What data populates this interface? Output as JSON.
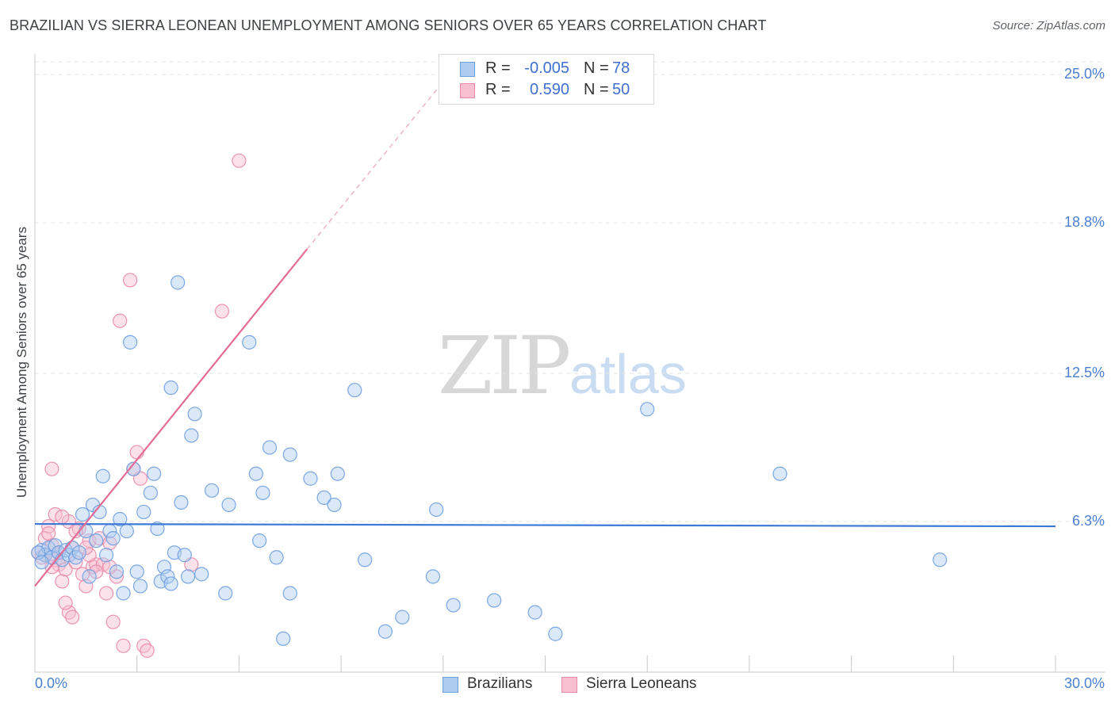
{
  "header": {
    "title": "BRAZILIAN VS SIERRA LEONEAN UNEMPLOYMENT AMONG SENIORS OVER 65 YEARS CORRELATION CHART",
    "source": "Source: ZipAtlas.com"
  },
  "watermark": {
    "zip": "ZIP",
    "atlas": "atlas"
  },
  "legend": {
    "r_label": "R =",
    "n_label": "N =",
    "rows": [
      {
        "name": "Brazilians",
        "r": "-0.005",
        "n": "78",
        "fill": "#aecbf0",
        "stroke": "#6e9fe0"
      },
      {
        "name": "Sierra Leoneans",
        "r": "0.590",
        "n": "50",
        "fill": "#f7bfd0",
        "stroke": "#e98aa8"
      }
    ]
  },
  "chart_data": {
    "type": "scatter",
    "title": "BRAZILIAN VS SIERRA LEONEAN UNEMPLOYMENT AMONG SENIORS OVER 65 YEARS CORRELATION CHART",
    "xlabel": "",
    "ylabel": "Unemployment Among Seniors over 65 years",
    "xlim": [
      0,
      30
    ],
    "ylim": [
      0,
      25.8
    ],
    "x_tick_labels": [
      "0.0%",
      "30.0%"
    ],
    "y_ticks": [
      {
        "value": 6.3,
        "label": "6.3%"
      },
      {
        "value": 12.5,
        "label": "12.5%"
      },
      {
        "value": 18.8,
        "label": "18.8%"
      },
      {
        "value": 25.0,
        "label": "25.0%"
      }
    ],
    "grid": true,
    "series": [
      {
        "name": "Brazilians",
        "color": "#6e9fe0",
        "fill": "#aecbf0",
        "trend": {
          "x": [
            0,
            30
          ],
          "y": [
            6.2,
            6.1
          ]
        },
        "points": [
          [
            0.2,
            5.1
          ],
          [
            0.3,
            4.9
          ],
          [
            0.4,
            5.2
          ],
          [
            0.5,
            4.8
          ],
          [
            0.6,
            5.3
          ],
          [
            0.7,
            5.0
          ],
          [
            0.8,
            4.7
          ],
          [
            0.9,
            5.1
          ],
          [
            1.0,
            4.9
          ],
          [
            1.1,
            5.2
          ],
          [
            1.2,
            4.8
          ],
          [
            1.3,
            5.0
          ],
          [
            1.4,
            6.6
          ],
          [
            1.5,
            5.9
          ],
          [
            1.6,
            4.0
          ],
          [
            1.7,
            7.0
          ],
          [
            1.8,
            5.5
          ],
          [
            1.9,
            6.7
          ],
          [
            2.0,
            8.2
          ],
          [
            2.1,
            4.9
          ],
          [
            2.2,
            5.9
          ],
          [
            2.3,
            5.6
          ],
          [
            2.4,
            4.2
          ],
          [
            2.5,
            6.4
          ],
          [
            2.6,
            3.3
          ],
          [
            2.7,
            5.9
          ],
          [
            2.8,
            13.8
          ],
          [
            2.9,
            8.5
          ],
          [
            3.0,
            4.2
          ],
          [
            3.1,
            3.6
          ],
          [
            3.2,
            6.7
          ],
          [
            3.4,
            7.5
          ],
          [
            3.5,
            8.3
          ],
          [
            3.6,
            6.0
          ],
          [
            3.7,
            3.8
          ],
          [
            3.8,
            4.4
          ],
          [
            3.9,
            4.0
          ],
          [
            4.0,
            3.7
          ],
          [
            4.0,
            11.9
          ],
          [
            4.1,
            5.0
          ],
          [
            4.2,
            16.3
          ],
          [
            4.3,
            7.1
          ],
          [
            4.4,
            4.9
          ],
          [
            4.5,
            4.0
          ],
          [
            4.6,
            9.9
          ],
          [
            4.7,
            10.8
          ],
          [
            4.9,
            4.1
          ],
          [
            5.2,
            7.6
          ],
          [
            5.6,
            3.3
          ],
          [
            5.7,
            7.0
          ],
          [
            6.3,
            13.8
          ],
          [
            6.5,
            8.3
          ],
          [
            6.6,
            5.5
          ],
          [
            6.7,
            7.5
          ],
          [
            6.9,
            9.4
          ],
          [
            7.1,
            4.8
          ],
          [
            7.3,
            1.4
          ],
          [
            7.5,
            9.1
          ],
          [
            7.5,
            3.3
          ],
          [
            8.1,
            8.1
          ],
          [
            8.5,
            7.3
          ],
          [
            8.8,
            7.0
          ],
          [
            8.9,
            8.3
          ],
          [
            9.4,
            11.8
          ],
          [
            9.7,
            4.7
          ],
          [
            10.3,
            1.7
          ],
          [
            10.8,
            2.3
          ],
          [
            11.7,
            4.0
          ],
          [
            11.8,
            6.8
          ],
          [
            12.3,
            2.8
          ],
          [
            13.5,
            3.0
          ],
          [
            14.7,
            2.5
          ],
          [
            15.3,
            1.6
          ],
          [
            18.0,
            11.0
          ],
          [
            21.9,
            8.3
          ],
          [
            26.6,
            4.7
          ],
          [
            0.1,
            5.0
          ],
          [
            0.2,
            4.6
          ]
        ]
      },
      {
        "name": "Sierra Leoneans",
        "color": "#e98aa8",
        "fill": "#f7bfd0",
        "trend": {
          "x": [
            0,
            8.0
          ],
          "y": [
            3.6,
            17.7
          ]
        },
        "trend_ext": {
          "x": [
            8.0,
            12.0
          ],
          "y": [
            17.7,
            24.7
          ]
        },
        "points": [
          [
            0.1,
            5.0
          ],
          [
            0.2,
            4.8
          ],
          [
            0.3,
            5.6
          ],
          [
            0.4,
            6.1
          ],
          [
            0.5,
            5.3
          ],
          [
            0.6,
            4.7
          ],
          [
            0.7,
            4.5
          ],
          [
            0.8,
            3.8
          ],
          [
            0.9,
            4.3
          ],
          [
            1.0,
            6.3
          ],
          [
            1.0,
            2.5
          ],
          [
            1.1,
            5.2
          ],
          [
            1.2,
            4.6
          ],
          [
            1.3,
            6.0
          ],
          [
            1.4,
            4.1
          ],
          [
            1.5,
            3.6
          ],
          [
            1.6,
            5.5
          ],
          [
            1.7,
            4.4
          ],
          [
            1.8,
            4.5
          ],
          [
            1.9,
            5.6
          ],
          [
            2.0,
            4.5
          ],
          [
            2.1,
            3.3
          ],
          [
            2.2,
            5.4
          ],
          [
            2.3,
            2.1
          ],
          [
            2.4,
            4.0
          ],
          [
            2.5,
            14.7
          ],
          [
            2.6,
            1.1
          ],
          [
            2.8,
            16.4
          ],
          [
            2.9,
            8.5
          ],
          [
            3.0,
            9.2
          ],
          [
            3.1,
            8.1
          ],
          [
            3.2,
            1.1
          ],
          [
            3.3,
            0.9
          ],
          [
            4.6,
            4.5
          ],
          [
            5.5,
            15.1
          ],
          [
            6.0,
            21.4
          ],
          [
            0.5,
            8.5
          ],
          [
            0.6,
            6.6
          ],
          [
            0.9,
            2.9
          ],
          [
            1.1,
            2.3
          ],
          [
            0.3,
            4.9
          ],
          [
            0.4,
            5.8
          ],
          [
            0.7,
            5.0
          ],
          [
            0.8,
            6.5
          ],
          [
            1.2,
            5.9
          ],
          [
            1.6,
            4.9
          ],
          [
            1.8,
            4.2
          ],
          [
            2.2,
            4.4
          ],
          [
            0.5,
            4.4
          ],
          [
            1.5,
            5.2
          ]
        ]
      }
    ]
  }
}
